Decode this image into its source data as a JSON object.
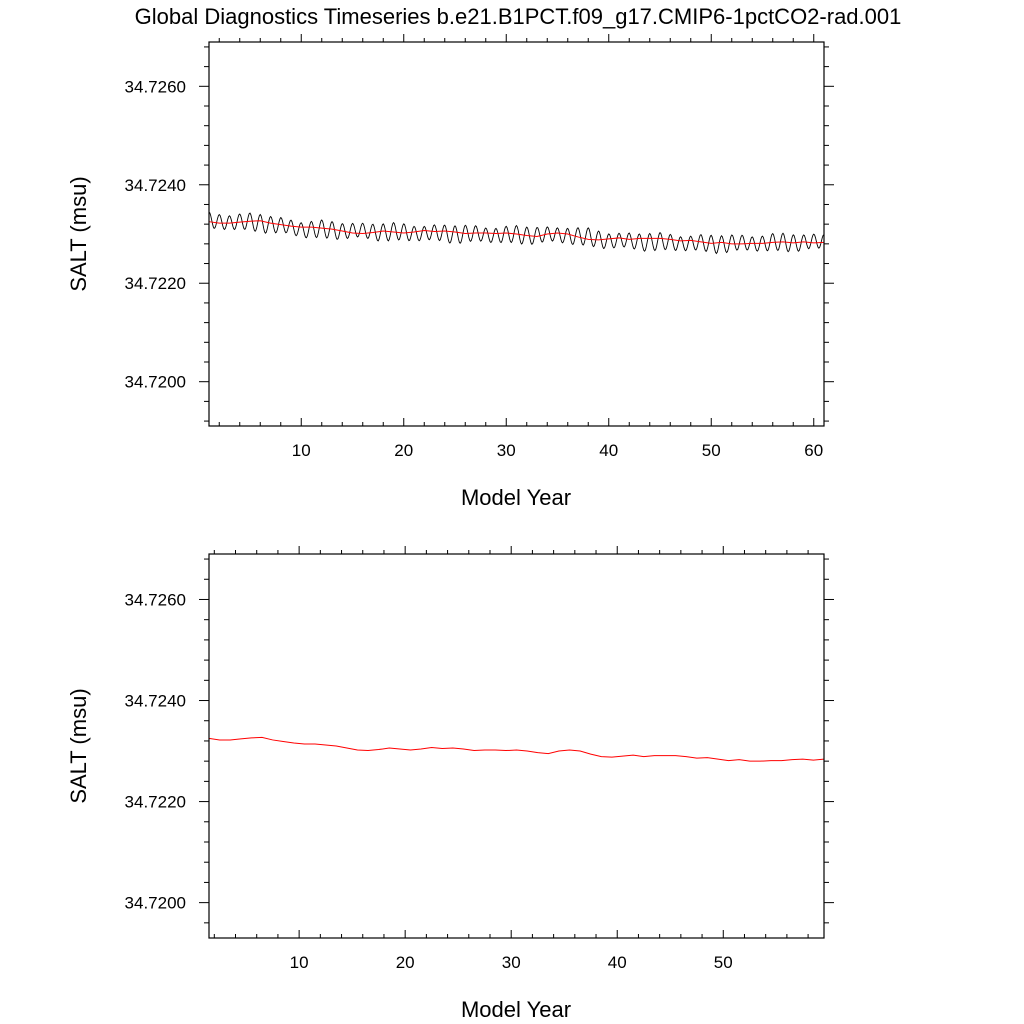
{
  "title": "Global Diagnostics Timeseries b.e21.B1PCT.f09_g17.CMIP6-1pctCO2-rad.001",
  "colors": {
    "monthly": "#000000",
    "annual": "#ff0000",
    "axes": "#000000"
  },
  "chart_data": [
    {
      "type": "line",
      "xlabel": "Model Year",
      "ylabel": "SALT (msu)",
      "xlim": [
        1,
        61
      ],
      "ylim": [
        34.7191,
        34.7269
      ],
      "xticks": [
        10,
        20,
        30,
        40,
        50,
        60
      ],
      "xtick_labels": [
        "10",
        "20",
        "30",
        "40",
        "50",
        "60"
      ],
      "yticks": [
        34.72,
        34.722,
        34.724,
        34.726
      ],
      "ytick_labels": [
        "34.7200",
        "34.7220",
        "34.7240",
        "34.7260"
      ],
      "series": [
        {
          "style": "monthly",
          "color": "#000000",
          "x_start": 1.0,
          "x_end": 61.0,
          "trend": [
            [
              1,
              34.72326
            ],
            [
              6,
              34.72323
            ],
            [
              10,
              34.7231
            ],
            [
              20,
              34.72303
            ],
            [
              30,
              34.72298
            ],
            [
              36,
              34.72298
            ],
            [
              40,
              34.72287
            ],
            [
              50,
              34.7228
            ],
            [
              61,
              34.72284
            ]
          ],
          "seasonal_amplitude": 0.00016
        },
        {
          "style": "annual",
          "color": "#ff0000",
          "x": [
            1,
            2,
            3,
            4,
            5,
            6,
            7,
            8,
            9,
            10,
            11,
            12,
            13,
            14,
            15,
            16,
            17,
            18,
            19,
            20,
            21,
            22,
            23,
            24,
            25,
            26,
            27,
            28,
            29,
            30,
            31,
            32,
            33,
            34,
            35,
            36,
            37,
            38,
            39,
            40,
            41,
            42,
            43,
            44,
            45,
            46,
            47,
            48,
            49,
            50,
            51,
            52,
            53,
            54,
            55,
            56,
            57,
            58,
            59,
            60,
            61
          ],
          "y": [
            34.72325,
            34.72322,
            34.72322,
            34.72324,
            34.72326,
            34.72327,
            34.72322,
            34.72319,
            34.72316,
            34.72314,
            34.72314,
            34.72312,
            34.7231,
            34.72306,
            34.72302,
            34.72301,
            34.72303,
            34.72306,
            34.72304,
            34.72302,
            34.72304,
            34.72307,
            34.72305,
            34.72306,
            34.72304,
            34.72301,
            34.72302,
            34.72302,
            34.72301,
            34.72302,
            34.723,
            34.72297,
            34.72295,
            34.723,
            34.72302,
            34.723,
            34.72294,
            34.72289,
            34.72288,
            34.7229,
            34.72292,
            34.72289,
            34.72291,
            34.72291,
            34.72291,
            34.72289,
            34.72286,
            34.72287,
            34.72284,
            34.72281,
            34.72283,
            34.7228,
            34.7228,
            34.72281,
            34.72281,
            34.72283,
            34.72284,
            34.72282,
            34.72284,
            34.72282,
            34.72283
          ]
        }
      ]
    },
    {
      "type": "line",
      "xlabel": "Model Year",
      "ylabel": "SALT (msu)",
      "xlim": [
        1.5,
        59.5
      ],
      "ylim": [
        34.7193,
        34.7269
      ],
      "xticks": [
        10,
        20,
        30,
        40,
        50
      ],
      "xtick_labels": [
        "10",
        "20",
        "30",
        "40",
        "50"
      ],
      "yticks": [
        34.72,
        34.722,
        34.724,
        34.726
      ],
      "ytick_labels": [
        "34.7200",
        "34.7220",
        "34.7240",
        "34.7260"
      ],
      "series": [
        {
          "style": "annual",
          "color": "#ff0000",
          "x": [
            1.5,
            2.5,
            3.5,
            4.5,
            5.5,
            6.5,
            7.5,
            8.5,
            9.5,
            10.5,
            11.5,
            12.5,
            13.5,
            14.5,
            15.5,
            16.5,
            17.5,
            18.5,
            19.5,
            20.5,
            21.5,
            22.5,
            23.5,
            24.5,
            25.5,
            26.5,
            27.5,
            28.5,
            29.5,
            30.5,
            31.5,
            32.5,
            33.5,
            34.5,
            35.5,
            36.5,
            37.5,
            38.5,
            39.5,
            40.5,
            41.5,
            42.5,
            43.5,
            44.5,
            45.5,
            46.5,
            47.5,
            48.5,
            49.5,
            50.5,
            51.5,
            52.5,
            53.5,
            54.5,
            55.5,
            56.5,
            57.5,
            58.5,
            59.5
          ],
          "y": [
            34.72325,
            34.72322,
            34.72322,
            34.72324,
            34.72326,
            34.72327,
            34.72322,
            34.72319,
            34.72316,
            34.72314,
            34.72314,
            34.72312,
            34.7231,
            34.72306,
            34.72302,
            34.72301,
            34.72303,
            34.72306,
            34.72304,
            34.72302,
            34.72304,
            34.72307,
            34.72305,
            34.72306,
            34.72304,
            34.72301,
            34.72302,
            34.72302,
            34.72301,
            34.72302,
            34.723,
            34.72297,
            34.72295,
            34.723,
            34.72302,
            34.723,
            34.72294,
            34.72289,
            34.72288,
            34.7229,
            34.72292,
            34.72289,
            34.72291,
            34.72291,
            34.72291,
            34.72289,
            34.72286,
            34.72287,
            34.72284,
            34.72281,
            34.72283,
            34.7228,
            34.7228,
            34.72281,
            34.72281,
            34.72283,
            34.72284,
            34.72282,
            34.72284
          ]
        }
      ]
    }
  ]
}
